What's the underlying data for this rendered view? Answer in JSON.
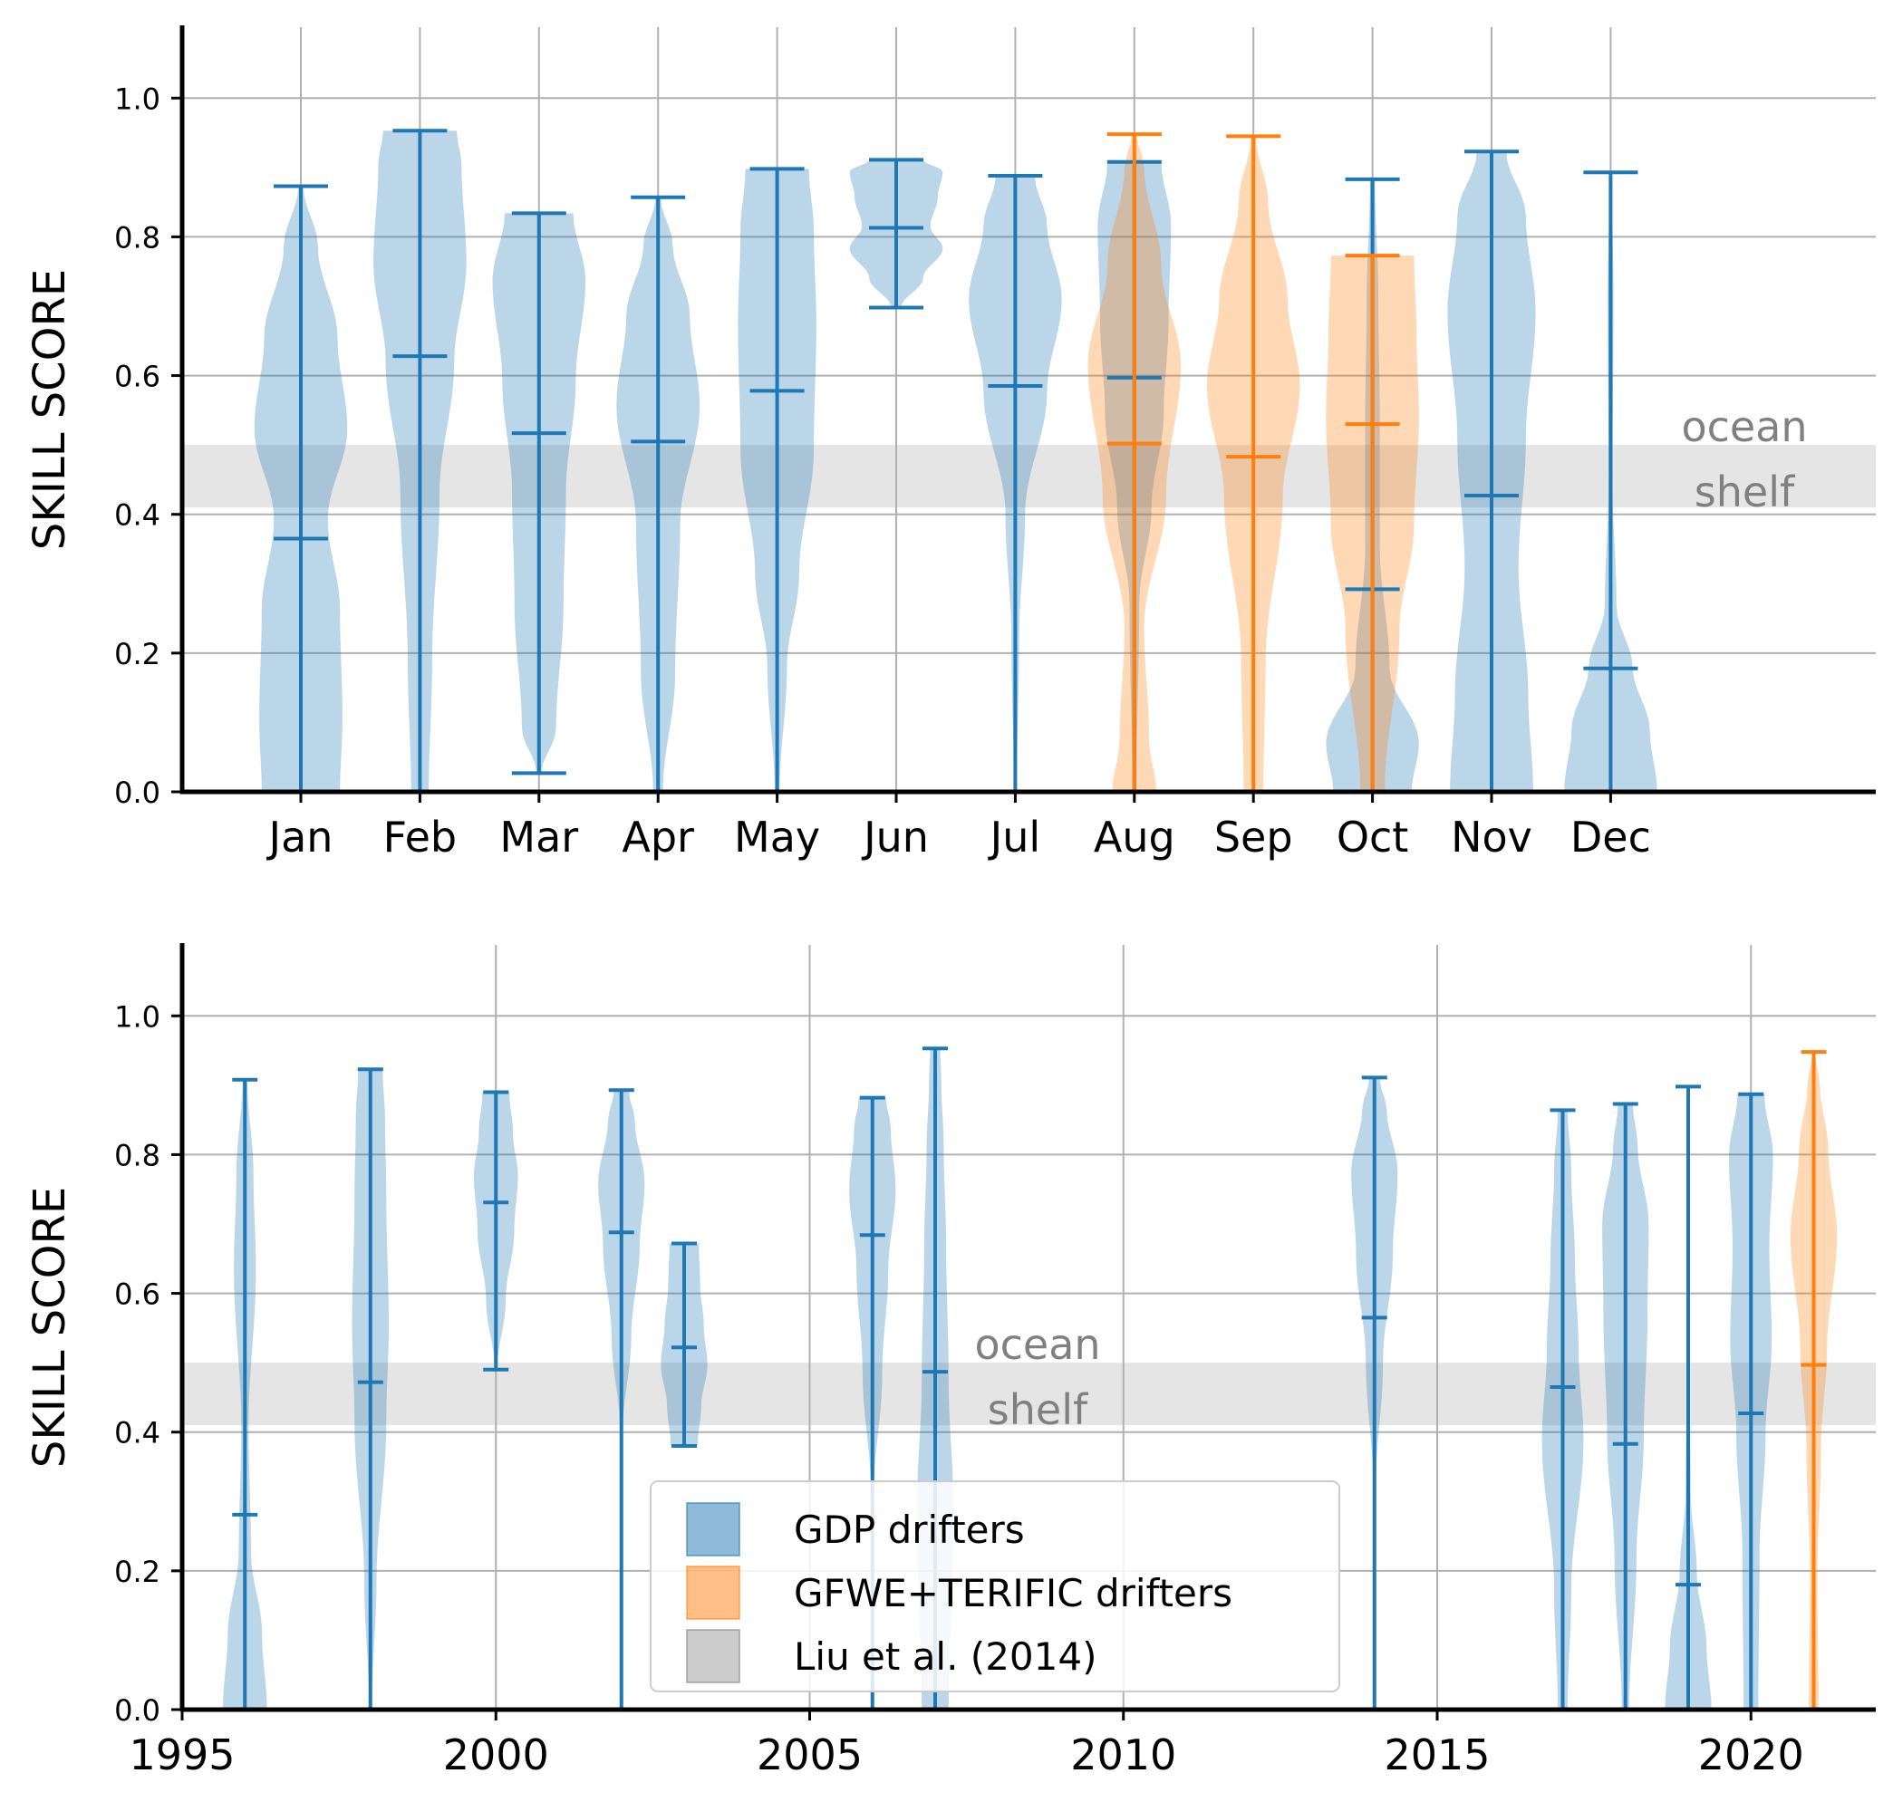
{
  "chart_data": [
    {
      "type": "violin",
      "ylabel": "SKILL SCORE",
      "ylim": [
        0,
        1.05
      ],
      "yticks": [
        "0.0",
        "0.2",
        "0.4",
        "0.6",
        "0.8",
        "1.0"
      ],
      "grid": true,
      "categories": [
        "Jan",
        "Feb",
        "Mar",
        "Apr",
        "May",
        "Jun",
        "Jul",
        "Aug",
        "Sep",
        "Oct",
        "Nov",
        "Dec"
      ],
      "band": {
        "ymin": 0.41,
        "ymax": 0.5,
        "labels": [
          "ocean",
          "shelf"
        ]
      },
      "series": [
        {
          "name": "GDP drifters",
          "color": "#1f77b4",
          "values": [
            {
              "x": "Jan",
              "min": 0.0,
              "median": 0.365,
              "max": 0.873
            },
            {
              "x": "Feb",
              "min": 0.0,
              "median": 0.628,
              "max": 0.953
            },
            {
              "x": "Mar",
              "min": 0.027,
              "median": 0.517,
              "max": 0.834
            },
            {
              "x": "Apr",
              "min": 0.0,
              "median": 0.505,
              "max": 0.857
            },
            {
              "x": "May",
              "min": 0.0,
              "median": 0.578,
              "max": 0.898
            },
            {
              "x": "Jun",
              "min": 0.698,
              "median": 0.813,
              "max": 0.911
            },
            {
              "x": "Jul",
              "min": 0.0,
              "median": 0.585,
              "max": 0.888
            },
            {
              "x": "Aug",
              "min": 0.0,
              "median": 0.597,
              "max": 0.908
            },
            {
              "x": "Oct",
              "min": 0.0,
              "median": 0.292,
              "max": 0.883
            },
            {
              "x": "Nov",
              "min": 0.0,
              "median": 0.427,
              "max": 0.923
            },
            {
              "x": "Dec",
              "min": 0.0,
              "median": 0.178,
              "max": 0.893
            }
          ]
        },
        {
          "name": "GFWE+TERIFIC drifters",
          "color": "#ff7f0e",
          "values": [
            {
              "x": "Aug",
              "min": 0.0,
              "median": 0.502,
              "max": 0.948
            },
            {
              "x": "Sep",
              "min": 0.0,
              "median": 0.483,
              "max": 0.945
            },
            {
              "x": "Oct",
              "min": 0.0,
              "median": 0.53,
              "max": 0.773
            }
          ]
        }
      ]
    },
    {
      "type": "violin",
      "ylabel": "SKILL SCORE",
      "ylim": [
        0,
        1.05
      ],
      "xlim": [
        1995,
        2022
      ],
      "yticks": [
        "0.0",
        "0.2",
        "0.4",
        "0.6",
        "0.8",
        "1.0"
      ],
      "xticks": [
        "1995",
        "2000",
        "2005",
        "2010",
        "2015",
        "2020"
      ],
      "grid": true,
      "band": {
        "ymin": 0.41,
        "ymax": 0.5,
        "labels": [
          "ocean",
          "shelf"
        ]
      },
      "series": [
        {
          "name": "GDP drifters",
          "color": "#1f77b4",
          "values": [
            {
              "x": 1996,
              "min": 0.0,
              "median": 0.281,
              "max": 0.908
            },
            {
              "x": 1998,
              "min": 0.0,
              "median": 0.472,
              "max": 0.923
            },
            {
              "x": 2000,
              "min": 0.49,
              "median": 0.731,
              "max": 0.89
            },
            {
              "x": 2002,
              "min": 0.0,
              "median": 0.688,
              "max": 0.893
            },
            {
              "x": 2003,
              "min": 0.38,
              "median": 0.522,
              "max": 0.672
            },
            {
              "x": 2006,
              "min": 0.0,
              "median": 0.684,
              "max": 0.882
            },
            {
              "x": 2007,
              "min": 0.0,
              "median": 0.487,
              "max": 0.953
            },
            {
              "x": 2014,
              "min": 0.0,
              "median": 0.565,
              "max": 0.911
            },
            {
              "x": 2017,
              "min": 0.0,
              "median": 0.465,
              "max": 0.864
            },
            {
              "x": 2018,
              "min": 0.0,
              "median": 0.383,
              "max": 0.873
            },
            {
              "x": 2019,
              "min": 0.0,
              "median": 0.18,
              "max": 0.898
            },
            {
              "x": 2020,
              "min": 0.0,
              "median": 0.427,
              "max": 0.887
            }
          ]
        },
        {
          "name": "GFWE+TERIFIC drifters",
          "color": "#ff7f0e",
          "values": [
            {
              "x": 2021,
              "min": 0.0,
              "median": 0.497,
              "max": 0.948
            }
          ]
        }
      ],
      "legend": {
        "placement": "lower-center",
        "entries": [
          {
            "label": "GDP drifters",
            "color": "#1f77b4"
          },
          {
            "label": "GFWE+TERIFIC drifters",
            "color": "#ff7f0e"
          },
          {
            "label": "Liu et al. (2014)",
            "color": "#808080"
          }
        ]
      }
    }
  ]
}
